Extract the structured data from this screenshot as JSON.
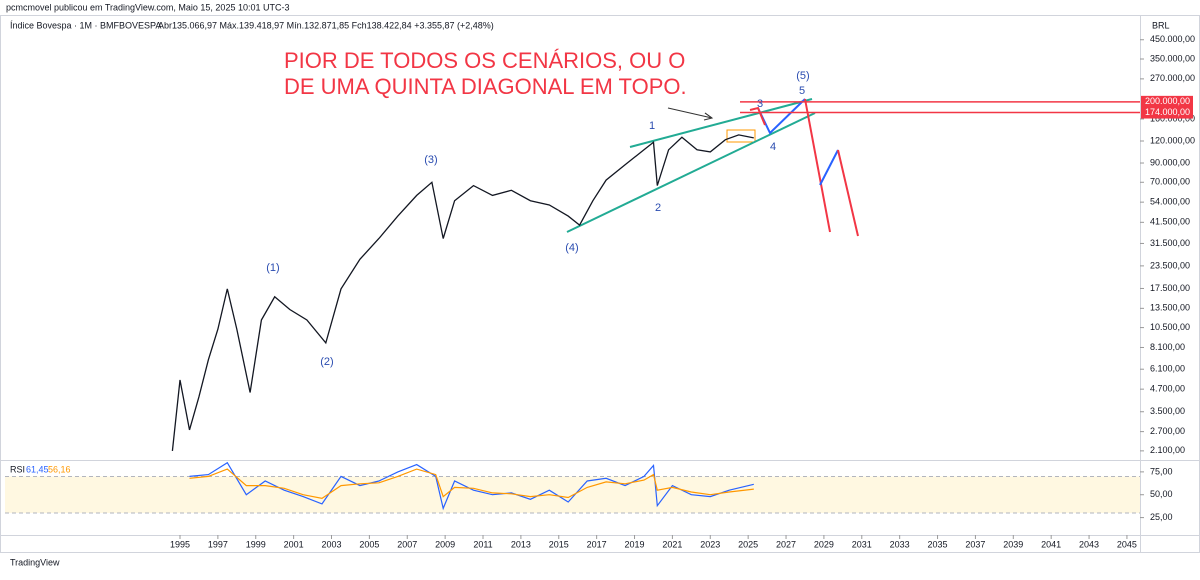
{
  "header": {
    "published": "pcmcmovel publicou em TradingView.com, Maio 15, 2025 10:01 UTC-3",
    "brand": "TradingView"
  },
  "chart_data": [
    {
      "type": "line",
      "log_scale": true,
      "title": "Índice Bovespa · 1M · BMFBOVESPA",
      "subtitle": "Abr135.066,97  Máx.139.418,97  Mín.132.871,85  Fch138.422,84  +3.355,87 (+2,48%)",
      "currency": "BRL",
      "x": [
        1994.6,
        1995.0,
        1995.5,
        1996.0,
        1996.5,
        1997.0,
        1997.5,
        1998.0,
        1998.7,
        1999.3,
        2000.0,
        2000.8,
        2001.7,
        2002.7,
        2003.5,
        2004.5,
        2005.5,
        2006.5,
        2007.5,
        2008.3,
        2008.9,
        2009.5,
        2010.5,
        2011.5,
        2012.5,
        2013.5,
        2014.5,
        2015.5,
        2016.1,
        2016.8,
        2017.5,
        2018.5,
        2019.5,
        2020.0,
        2020.2,
        2020.8,
        2021.5,
        2022.3,
        2023.0,
        2023.8,
        2024.5,
        2025.3
      ],
      "series": [
        {
          "color": "#131722",
          "values": [
            2100,
            5300,
            2760,
            4250,
            6900,
            10300,
            17400,
            10300,
            4500,
            11600,
            15700,
            13300,
            11600,
            8600,
            17400,
            25600,
            33600,
            45000,
            59000,
            70000,
            33600,
            55000,
            67000,
            59000,
            63000,
            55000,
            52000,
            45000,
            40000,
            55000,
            72000,
            88000,
            107000,
            118000,
            67000,
            107000,
            126000,
            107000,
            104000,
            122000,
            130000,
            125000
          ]
        }
      ],
      "xlim": [
        1985.76,
        2045.69
      ],
      "xticks": [
        1995,
        1997,
        1999,
        2001,
        2003,
        2005,
        2007,
        2009,
        2011,
        2013,
        2015,
        2017,
        2019,
        2021,
        2023,
        2025,
        2027,
        2029,
        2031,
        2033,
        2035,
        2037,
        2039,
        2041,
        2043,
        2045
      ],
      "ylim": [
        1864,
        621600
      ],
      "yticks": [
        {
          "value": 450000,
          "label": "450.000,00"
        },
        {
          "value": 350000,
          "label": "350.000,00"
        },
        {
          "value": 270000,
          "label": "270.000,00"
        },
        {
          "value": 160000,
          "label": "160.000,00"
        },
        {
          "value": 120000,
          "label": "120.000,00"
        },
        {
          "value": 90000,
          "label": "90.000,00"
        },
        {
          "value": 70000,
          "label": "70.000,00"
        },
        {
          "value": 54000,
          "label": "54.000,00"
        },
        {
          "value": 41500,
          "label": "41.500,00"
        },
        {
          "value": 31500,
          "label": "31.500,00"
        },
        {
          "value": 23500,
          "label": "23.500,00"
        },
        {
          "value": 17500,
          "label": "17.500,00"
        },
        {
          "value": 13500,
          "label": "13.500,00"
        },
        {
          "value": 10500,
          "label": "10.500,00"
        },
        {
          "value": 8100,
          "label": "8.100,00"
        },
        {
          "value": 6100,
          "label": "6.100,00"
        },
        {
          "value": 4700,
          "label": "4.700,00"
        },
        {
          "value": 3500,
          "label": "3.500,00"
        },
        {
          "value": 2700,
          "label": "2.700,00"
        },
        {
          "value": 2100,
          "label": "2.100,00"
        }
      ],
      "levels": [
        {
          "value": 200000,
          "label": "200.000,00"
        },
        {
          "value": 174000,
          "label": "174.000,00"
        }
      ],
      "level_color": "#f23645",
      "annotations": [
        "PIOR DE TODOS OS CENÁRIOS, OU O",
        "DE UMA QUINTA DIAGONAL EM TOPO.",
        "(1)",
        "(2)",
        "(3)",
        "(4)",
        "(5)",
        "1",
        "2",
        "3",
        "4",
        "5"
      ]
    },
    {
      "type": "line",
      "title": "RSI",
      "x": [
        1995.5,
        1996.5,
        1997.5,
        1998.5,
        1999.5,
        2000.5,
        2001.5,
        2002.5,
        2003.5,
        2004.5,
        2005.5,
        2006.5,
        2007.5,
        2008.5,
        2008.9,
        2009.5,
        2010.5,
        2011.5,
        2012.5,
        2013.5,
        2014.5,
        2015.5,
        2016.5,
        2017.5,
        2018.5,
        2019.5,
        2020.0,
        2020.2,
        2021.0,
        2022.0,
        2023.0,
        2024.0,
        2025.3
      ],
      "series": [
        {
          "color": "#2962ff",
          "value_label": "61,45",
          "values": [
            70,
            72,
            85,
            50,
            65,
            55,
            48,
            40,
            70,
            60,
            65,
            75,
            83,
            70,
            35,
            65,
            55,
            50,
            52,
            45,
            55,
            42,
            65,
            68,
            60,
            70,
            82,
            38,
            60,
            50,
            48,
            55,
            61.45
          ]
        },
        {
          "color": "#ff9800",
          "value_label": "56,16",
          "values": [
            68,
            70,
            78,
            60,
            60,
            57,
            50,
            46,
            60,
            62,
            63,
            70,
            78,
            72,
            48,
            58,
            57,
            52,
            51,
            48,
            50,
            47,
            58,
            64,
            62,
            66,
            72,
            55,
            58,
            53,
            50,
            53,
            56.16
          ]
        }
      ],
      "ylim": [
        5.95,
        86.9
      ],
      "yticks": [
        {
          "value": 75,
          "label": "75,00"
        },
        {
          "value": 50,
          "label": "50,00"
        },
        {
          "value": 25,
          "label": "25,00"
        }
      ],
      "bands": [
        70,
        30
      ]
    }
  ]
}
